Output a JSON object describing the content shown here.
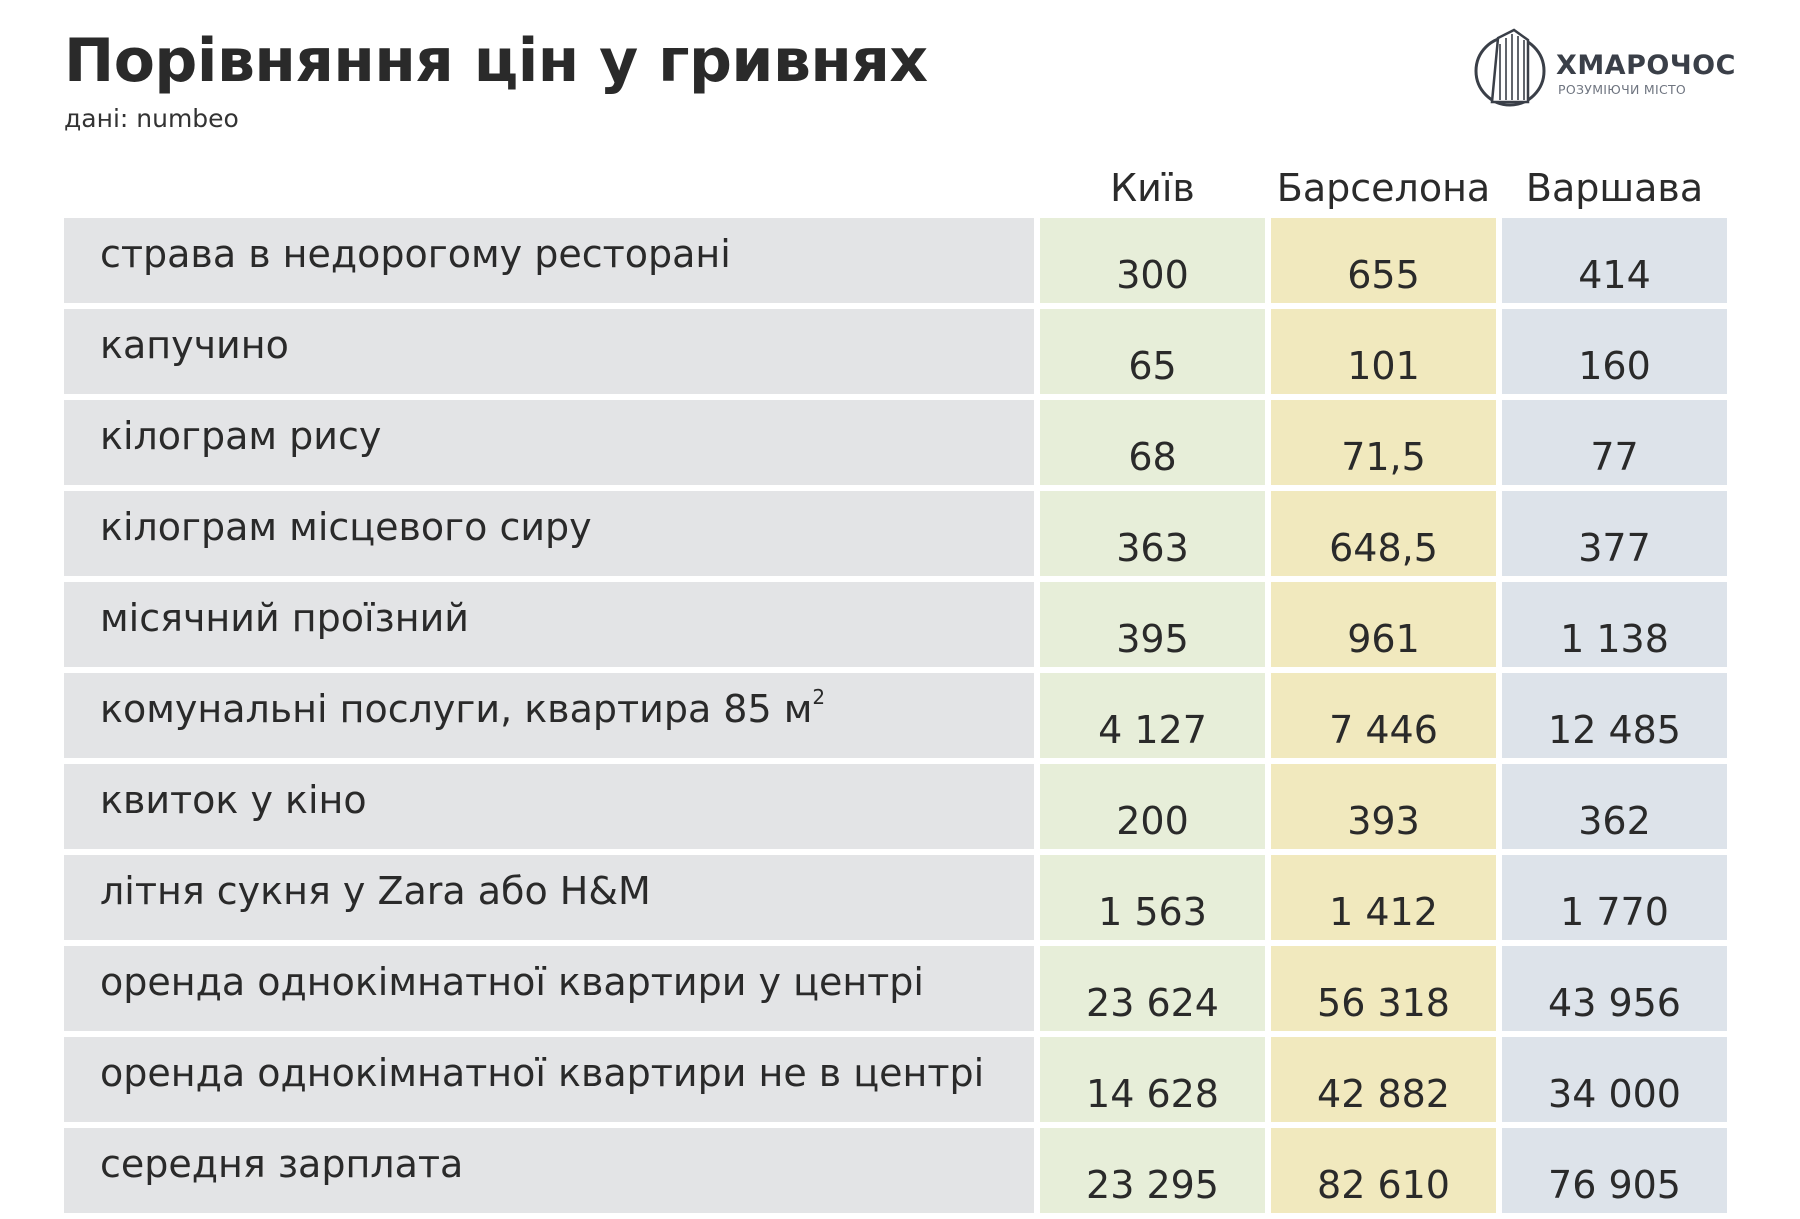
{
  "title": "Порівняння цін у гривнях",
  "subtitle": "дані: numbeo",
  "logo": {
    "name": "ХМАРОЧОС",
    "tagline": "РОЗУМІЮЧИ МІСТО"
  },
  "colors": {
    "label_bg": "#e3e4e6",
    "kyiv_bg": "#e7eed9",
    "barcelona_bg": "#f1e9be",
    "warsaw_bg": "#dde3ea"
  },
  "chart_data": {
    "type": "table",
    "title": "Порівняння цін у гривнях",
    "columns": [
      "Київ",
      "Барселона",
      "Варшава"
    ],
    "rows": [
      {
        "label": "страва в недорогому ресторані",
        "values": [
          "300",
          "655",
          "414"
        ]
      },
      {
        "label": "капучино",
        "values": [
          "65",
          "101",
          "160"
        ]
      },
      {
        "label": "кілограм рису",
        "values": [
          "68",
          "71,5",
          "77"
        ]
      },
      {
        "label": "кілограм місцевого сиру",
        "values": [
          "363",
          "648,5",
          "377"
        ]
      },
      {
        "label": "місячний проїзний",
        "values": [
          "395",
          "961",
          "1 138"
        ]
      },
      {
        "label": "комунальні послуги, квартира 85 м",
        "label_sup": "2",
        "values": [
          "4 127",
          "7 446",
          "12 485"
        ]
      },
      {
        "label": "квиток у кіно",
        "values": [
          "200",
          "393",
          "362"
        ]
      },
      {
        "label": "літня сукня у Zara або H&M",
        "values": [
          "1 563",
          "1 412",
          "1 770"
        ]
      },
      {
        "label": "оренда однокімнатної квартири у центрі",
        "values": [
          "23 624",
          "56 318",
          "43 956"
        ]
      },
      {
        "label": "оренда однокімнатної квартири не в центрі",
        "values": [
          "14 628",
          "42 882",
          "34 000"
        ]
      },
      {
        "label": "середня зарплата",
        "values": [
          "23 295",
          "82 610",
          "76 905"
        ]
      }
    ]
  }
}
